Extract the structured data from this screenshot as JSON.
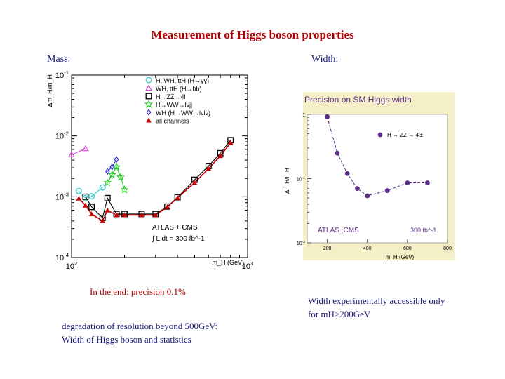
{
  "title": "Measurement of  Higgs boson properties",
  "labels": {
    "mass": "Mass:",
    "width": "Width:"
  },
  "notes": {
    "precision": "In the end: precision 0.1%",
    "degradation_line1": "degradation of resolution beyond 500GeV:",
    "degradation_line2": "Width of Higgs boson and statistics",
    "width_access_line1": "Width experimentally accessible only",
    "width_access_line2": "for mH>200GeV"
  },
  "colors": {
    "title": "#b00000",
    "labels": "#1a1a7a",
    "all_channels": "#cc0000",
    "width_series": "#5b2d86",
    "width_panel_bg": "#f4efc7"
  },
  "chart_data": [
    {
      "type": "line",
      "title": "",
      "xlabel": "m_H (GeV)",
      "ylabel": "Δm_H/m_H",
      "x_scale": "log",
      "y_scale": "log",
      "xlim": [
        100,
        1000
      ],
      "ylim": [
        0.0001,
        0.1
      ],
      "x_ticks": [
        "10^2",
        "10^3"
      ],
      "y_ticks": [
        "10^-1",
        "10^-2",
        "10^-3",
        "10^-4"
      ],
      "legend_position": "top-right",
      "annotation": [
        "ATLAS + CMS",
        "∫ L dt = 300 fb^-1"
      ],
      "series": [
        {
          "name": "H, WH, ttH (H→γγ)",
          "marker": "circle",
          "color": "#33cccc",
          "x": [
            110,
            120,
            130,
            150
          ],
          "y": [
            0.00124,
            0.00095,
            0.00102,
            0.00142
          ]
        },
        {
          "name": "WH, ttH (H→bb)",
          "marker": "triangle",
          "color": "#dd44dd",
          "x": [
            100,
            120
          ],
          "y": [
            0.0049,
            0.0062
          ]
        },
        {
          "name": "H→ZZ→4l",
          "marker": "square",
          "color": "#000000",
          "x": [
            120,
            130,
            150,
            160,
            180,
            200,
            250,
            300,
            350,
            400,
            500,
            600,
            700,
            800
          ],
          "y": [
            0.001,
            0.00068,
            0.00045,
            0.00095,
            0.00052,
            0.00052,
            0.00052,
            0.00052,
            0.00069,
            0.00098,
            0.0019,
            0.0032,
            0.0052,
            0.0085
          ]
        },
        {
          "name": "H→WW→lνjj",
          "marker": "star",
          "color": "#22cc22",
          "x": [
            160,
            170,
            180,
            190,
            200
          ],
          "y": [
            0.0017,
            0.0023,
            0.0031,
            0.0021,
            0.0013
          ]
        },
        {
          "name": "WH (H→WW→lνlν)",
          "marker": "diamond",
          "color": "#3333cc",
          "x": [
            160,
            170,
            180
          ],
          "y": [
            0.0026,
            0.0031,
            0.0041
          ]
        },
        {
          "name": "all channels",
          "marker": "filled-triangle",
          "color": "#cc0000",
          "x": [
            110,
            120,
            130,
            150,
            160,
            180,
            200,
            250,
            300,
            350,
            400,
            500,
            600,
            700,
            800
          ],
          "y": [
            0.00094,
            0.00072,
            0.00052,
            0.0004,
            0.0006,
            0.0005,
            0.0005,
            0.0005,
            0.0005,
            0.00068,
            0.00096,
            0.0017,
            0.0029,
            0.0047,
            0.0077
          ]
        }
      ]
    },
    {
      "type": "line",
      "title": "Precision on SM Higgs width",
      "xlabel": "m_H (GeV)",
      "ylabel": "ΔΓ_H/Γ_H",
      "x_scale": "linear",
      "y_scale": "log",
      "xlim": [
        100,
        800
      ],
      "ylim": [
        0.01,
        1
      ],
      "x_ticks": [
        "200",
        "400",
        "600",
        "800"
      ],
      "y_ticks": [
        "1",
        "10^-1",
        "10^-2"
      ],
      "legend_position": "top-right",
      "annotation": [
        "ATLAS ,CMS",
        "300 fb^-1"
      ],
      "series": [
        {
          "name": "H → ZZ → 4l±",
          "marker": "circle",
          "color": "#5b2d86",
          "x": [
            200,
            250,
            300,
            350,
            400,
            500,
            600,
            700
          ],
          "y": [
            0.92,
            0.25,
            0.12,
            0.07,
            0.054,
            0.065,
            0.086,
            0.086
          ]
        }
      ]
    }
  ]
}
